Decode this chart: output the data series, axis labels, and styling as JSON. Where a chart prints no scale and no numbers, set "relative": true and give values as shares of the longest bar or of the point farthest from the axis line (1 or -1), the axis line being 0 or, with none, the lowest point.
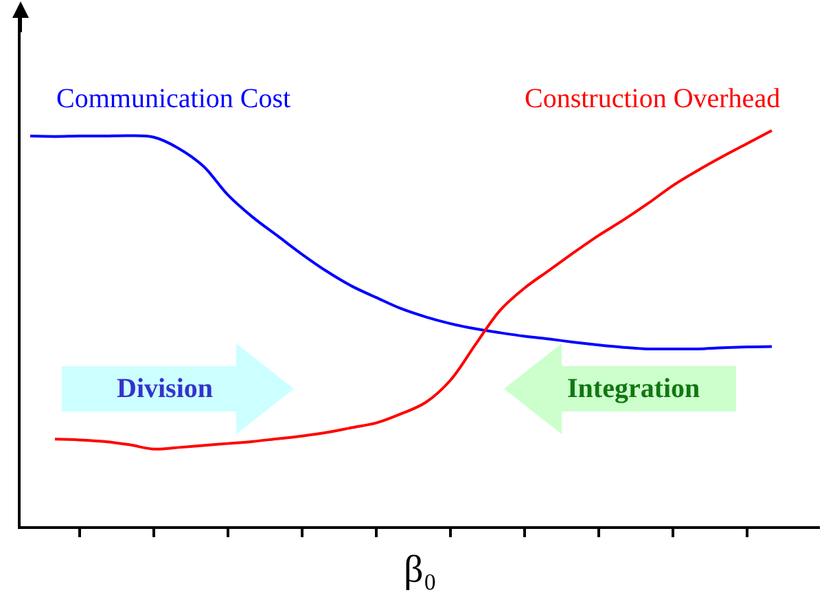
{
  "chart_data": {
    "type": "line",
    "relative": true,
    "xlabel": "β₀",
    "categories": [
      null,
      null,
      null,
      null,
      null,
      null,
      null,
      null,
      null,
      null,
      null,
      null,
      null,
      null,
      null,
      null,
      null,
      null,
      null,
      null,
      null,
      null,
      null,
      null,
      null,
      null,
      null,
      null,
      null,
      null,
      null
    ],
    "series": [
      {
        "name": "Communication Cost",
        "color": "#0000ff",
        "values": [
          0.986,
          0.985,
          0.986,
          0.986,
          0.987,
          0.983,
          0.955,
          0.91,
          0.837,
          0.781,
          0.734,
          0.687,
          0.644,
          0.607,
          0.578,
          0.55,
          0.529,
          0.512,
          0.499,
          0.489,
          0.48,
          0.473,
          0.465,
          0.458,
          0.452,
          0.448,
          0.448,
          0.448,
          0.451,
          0.453,
          0.454
        ]
      },
      {
        "name": "Construction Overhead",
        "color": "#ff0000",
        "values": [
          null,
          0.22,
          0.218,
          0.214,
          0.206,
          0.195,
          0.199,
          0.204,
          0.209,
          0.214,
          0.221,
          0.228,
          0.237,
          0.249,
          0.261,
          0.284,
          0.313,
          0.369,
          0.458,
          0.545,
          0.602,
          0.647,
          0.692,
          0.735,
          0.774,
          0.816,
          0.861,
          0.899,
          0.934,
          0.967,
          1.0
        ]
      }
    ],
    "annotations": [
      "Division",
      "Integration"
    ]
  }
}
